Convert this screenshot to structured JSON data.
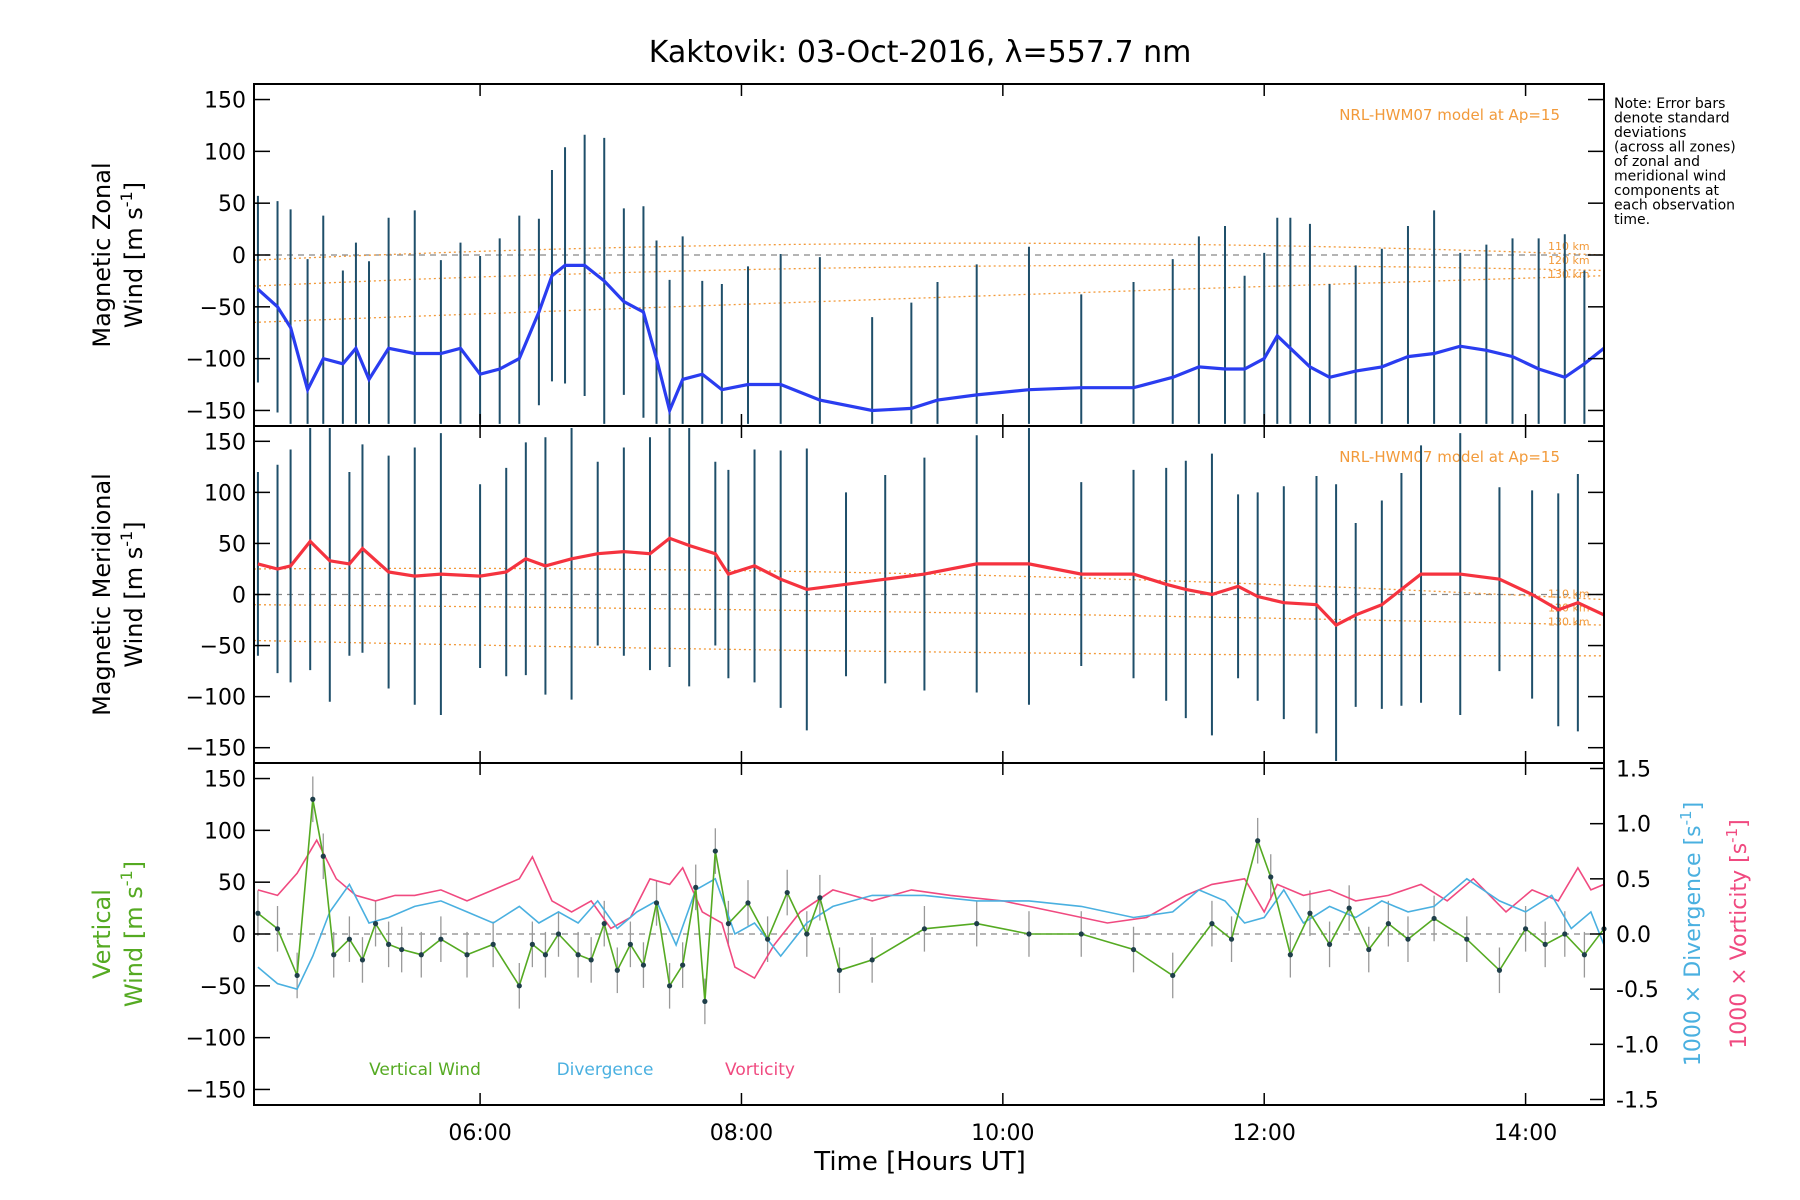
{
  "chart_data": {
    "type": "line",
    "title": "Kaktovik: 03-Oct-2016, λ=557.7 nm",
    "xlabel": "Time [Hours UT]",
    "x_range_hours": [
      4.27,
      14.6
    ],
    "x_ticks": [
      {
        "value": 6,
        "label": "06:00"
      },
      {
        "value": 8,
        "label": "08:00"
      },
      {
        "value": 10,
        "label": "10:00"
      },
      {
        "value": 12,
        "label": "12:00"
      },
      {
        "value": 14,
        "label": "14:00"
      }
    ],
    "note": [
      "Note: Error bars",
      "denote standard",
      "deviations",
      "(across all zones)",
      "of zonal and",
      "meridional wind",
      "components at",
      "each observation",
      "time."
    ],
    "colors": {
      "zonal": "#2a3df0",
      "meridional": "#f5333f",
      "vertical": "#55aa22",
      "divergence": "#4ab0e0",
      "vorticity": "#f04a80",
      "model": "#f29a3a",
      "errorbar": "#1f4f6a"
    },
    "panels": [
      {
        "ylabel_line1": "Magnetic Zonal",
        "ylabel_line2": "Wind",
        "ylabel_unit": "[m s",
        "ylabel_sup": "-1",
        "ylabel_close": "]",
        "ylim": [
          -165,
          165
        ],
        "y_ticks": [
          150,
          100,
          50,
          0,
          -50,
          -100,
          -150
        ],
        "model_label": "NRL-HWM07 model at Ap=15",
        "model_altitudes": [
          "110 km",
          "120 km",
          "130 km"
        ],
        "series": [
          {
            "x": [
              4.3,
              4.45,
              4.55,
              4.68,
              4.8,
              4.95,
              5.05,
              5.15,
              5.3,
              5.5,
              5.7,
              5.85,
              6.0,
              6.15,
              6.3,
              6.45,
              6.55,
              6.65,
              6.8,
              6.95,
              7.1,
              7.25,
              7.35,
              7.45,
              7.55,
              7.7,
              7.85,
              8.05,
              8.3,
              8.6,
              9.0,
              9.3,
              9.5,
              9.8,
              10.2,
              10.6,
              11.0,
              11.3,
              11.5,
              11.7,
              11.85,
              12.0,
              12.1,
              12.2,
              12.35,
              12.5,
              12.7,
              12.9,
              13.1,
              13.3,
              13.5,
              13.7,
              13.9,
              14.1,
              14.3,
              14.45,
              14.6
            ],
            "y": [
              -33,
              -50,
              -70,
              -130,
              -100,
              -105,
              -90,
              -120,
              -90,
              -95,
              -95,
              -90,
              -115,
              -110,
              -100,
              -55,
              -20,
              -10,
              -10,
              -25,
              -45,
              -55,
              -100,
              -150,
              -120,
              -115,
              -130,
              -125,
              -125,
              -140,
              -150,
              -148,
              -140,
              -135,
              -130,
              -128,
              -128,
              -118,
              -108,
              -110,
              -110,
              -100,
              -78,
              -90,
              -108,
              -118,
              -112,
              -108,
              -98,
              -95,
              -88,
              -92,
              -98,
              -110,
              -118,
              -105,
              -90
            ]
          }
        ]
      },
      {
        "ylabel_line1": "Magnetic Meridional",
        "ylabel_line2": "Wind",
        "ylabel_unit": "[m s",
        "ylabel_sup": "-1",
        "ylabel_close": "]",
        "ylim": [
          -165,
          165
        ],
        "y_ticks": [
          150,
          100,
          50,
          0,
          -50,
          -100,
          -150
        ],
        "model_label": "NRL-HWM07 model at Ap=15",
        "model_altitudes": [
          "110 km",
          "120 km",
          "130 km"
        ],
        "series": [
          {
            "x": [
              4.3,
              4.45,
              4.55,
              4.7,
              4.85,
              5.0,
              5.1,
              5.3,
              5.5,
              5.7,
              6.0,
              6.2,
              6.35,
              6.5,
              6.7,
              6.9,
              7.1,
              7.3,
              7.45,
              7.6,
              7.8,
              7.9,
              8.1,
              8.3,
              8.5,
              8.8,
              9.1,
              9.4,
              9.8,
              10.2,
              10.6,
              11.0,
              11.25,
              11.4,
              11.6,
              11.8,
              11.95,
              12.15,
              12.4,
              12.55,
              12.7,
              12.9,
              13.05,
              13.2,
              13.5,
              13.8,
              14.05,
              14.25,
              14.4,
              14.6
            ],
            "y": [
              30,
              25,
              28,
              52,
              33,
              30,
              45,
              22,
              18,
              20,
              18,
              22,
              35,
              28,
              35,
              40,
              42,
              40,
              55,
              48,
              40,
              20,
              28,
              15,
              5,
              10,
              15,
              20,
              30,
              30,
              20,
              20,
              10,
              5,
              0,
              8,
              -2,
              -8,
              -10,
              -30,
              -20,
              -10,
              5,
              20,
              20,
              15,
              0,
              -15,
              -8,
              -20
            ]
          }
        ]
      },
      {
        "ylabel_line1": "Vertical",
        "ylabel_line2": "Wind",
        "ylabel_unit": "[m s",
        "ylabel_sup": "-1",
        "ylabel_close": "]",
        "ylim": [
          -165,
          165
        ],
        "y_ticks": [
          150,
          100,
          50,
          0,
          -50,
          -100,
          -150
        ],
        "right_axis": {
          "ylim": [
            -1.55,
            1.55
          ],
          "ticks": [
            "1.5",
            "1.0",
            "0.5",
            "0.0",
            "-0.5",
            "-1.0",
            "-1.5"
          ],
          "label_div": "1000 × Divergence",
          "label_vort": "1000 × Vorticity",
          "unit_open": "[s",
          "unit_sup": "-1",
          "unit_close": "]"
        },
        "legend": [
          "Vertical Wind",
          "Divergence",
          "Vorticity"
        ],
        "series": [
          {
            "x": [
              4.3,
              4.45,
              4.6,
              4.72,
              4.8,
              4.88,
              5.0,
              5.1,
              5.2,
              5.3,
              5.4,
              5.55,
              5.7,
              5.9,
              6.1,
              6.3,
              6.4,
              6.5,
              6.6,
              6.75,
              6.85,
              6.95,
              7.05,
              7.15,
              7.25,
              7.35,
              7.45,
              7.55,
              7.65,
              7.72,
              7.8,
              7.9,
              8.05,
              8.2,
              8.35,
              8.5,
              8.6,
              8.75,
              9.0,
              9.4,
              9.8,
              10.2,
              10.6,
              11.0,
              11.3,
              11.6,
              11.75,
              11.95,
              12.05,
              12.2,
              12.35,
              12.5,
              12.65,
              12.8,
              12.95,
              13.1,
              13.3,
              13.55,
              13.8,
              14.0,
              14.15,
              14.3,
              14.45,
              14.6
            ],
            "y": [
              20,
              5,
              -40,
              130,
              75,
              -20,
              -5,
              -25,
              10,
              -10,
              -15,
              -20,
              -5,
              -20,
              -10,
              -50,
              -10,
              -20,
              0,
              -20,
              -25,
              10,
              -35,
              -10,
              -30,
              30,
              -50,
              -30,
              45,
              -65,
              80,
              10,
              30,
              -5,
              40,
              0,
              35,
              -35,
              -25,
              5,
              10,
              0,
              0,
              -15,
              -40,
              10,
              -5,
              90,
              55,
              -20,
              20,
              -10,
              25,
              -15,
              10,
              -5,
              15,
              -5,
              -35,
              5,
              -10,
              0,
              -20,
              5
            ]
          },
          {
            "x": [
              4.3,
              4.45,
              4.6,
              4.72,
              4.85,
              5.0,
              5.15,
              5.3,
              5.5,
              5.7,
              5.9,
              6.1,
              6.3,
              6.45,
              6.6,
              6.75,
              6.9,
              7.05,
              7.2,
              7.35,
              7.5,
              7.65,
              7.8,
              7.95,
              8.1,
              8.3,
              8.5,
              8.7,
              9.0,
              9.4,
              9.8,
              10.2,
              10.6,
              11.0,
              11.3,
              11.5,
              11.7,
              11.85,
              12.0,
              12.15,
              12.3,
              12.5,
              12.7,
              12.9,
              13.1,
              13.3,
              13.55,
              13.8,
              14.0,
              14.2,
              14.35,
              14.5,
              14.6
            ],
            "y": [
              -0.3,
              -0.45,
              -0.5,
              -0.2,
              0.2,
              0.45,
              0.1,
              0.15,
              0.25,
              0.3,
              0.2,
              0.1,
              0.25,
              0.1,
              0.2,
              0.1,
              0.3,
              0.05,
              0.2,
              0.3,
              -0.1,
              0.4,
              0.5,
              0.0,
              0.1,
              -0.2,
              0.1,
              0.25,
              0.35,
              0.35,
              0.3,
              0.3,
              0.25,
              0.15,
              0.2,
              0.4,
              0.3,
              0.1,
              0.15,
              0.4,
              0.1,
              0.25,
              0.15,
              0.3,
              0.2,
              0.25,
              0.5,
              0.3,
              0.2,
              0.35,
              0.05,
              0.2,
              -0.1
            ]
          },
          {
            "x": [
              4.3,
              4.45,
              4.6,
              4.75,
              4.9,
              5.05,
              5.2,
              5.35,
              5.5,
              5.7,
              5.9,
              6.1,
              6.3,
              6.4,
              6.55,
              6.7,
              6.85,
              7.0,
              7.15,
              7.3,
              7.45,
              7.55,
              7.7,
              7.85,
              7.95,
              8.1,
              8.25,
              8.45,
              8.7,
              9.0,
              9.3,
              9.6,
              10.0,
              10.4,
              10.8,
              11.1,
              11.4,
              11.6,
              11.85,
              12.0,
              12.1,
              12.3,
              12.5,
              12.7,
              12.95,
              13.2,
              13.4,
              13.6,
              13.85,
              14.05,
              14.25,
              14.4,
              14.5,
              14.6
            ],
            "y": [
              0.4,
              0.35,
              0.55,
              0.85,
              0.5,
              0.35,
              0.3,
              0.35,
              0.35,
              0.4,
              0.3,
              0.4,
              0.5,
              0.7,
              0.3,
              0.2,
              0.3,
              0.05,
              0.15,
              0.5,
              0.45,
              0.6,
              0.2,
              0.1,
              -0.3,
              -0.4,
              -0.1,
              0.2,
              0.4,
              0.3,
              0.4,
              0.35,
              0.3,
              0.2,
              0.1,
              0.15,
              0.35,
              0.45,
              0.5,
              0.2,
              0.45,
              0.35,
              0.4,
              0.3,
              0.35,
              0.45,
              0.3,
              0.5,
              0.2,
              0.4,
              0.3,
              0.6,
              0.4,
              0.45
            ]
          }
        ]
      }
    ]
  }
}
